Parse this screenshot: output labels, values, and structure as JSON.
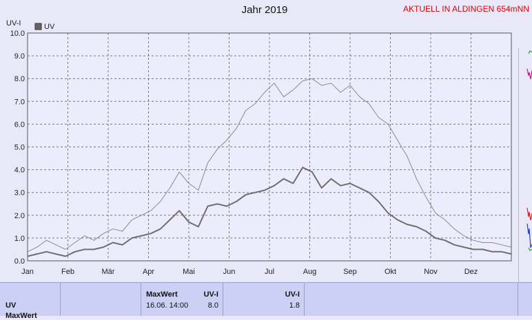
{
  "title": "Jahr 2019",
  "station": "AKTUELL IN ALDINGEN 654mNN",
  "chart_data": {
    "type": "line",
    "ylabel": "UV-I",
    "ylim": [
      0,
      10
    ],
    "yticks": [
      "0.0",
      "1.0",
      "2.0",
      "3.0",
      "4.0",
      "5.0",
      "6.0",
      "7.0",
      "8.0",
      "9.0",
      "10.0"
    ],
    "months": [
      "Jan",
      "Feb",
      "Mär",
      "Apr",
      "Mai",
      "Jun",
      "Jul",
      "Aug",
      "Sep",
      "Okt",
      "Nov",
      "Dez"
    ],
    "legend": [
      "UV"
    ],
    "grid": true,
    "series": [
      {
        "name": "UV",
        "role": "max",
        "values": [
          0.4,
          0.6,
          0.9,
          0.7,
          0.5,
          0.8,
          1.1,
          0.9,
          1.2,
          1.4,
          1.3,
          1.8,
          2.0,
          2.2,
          2.6,
          3.2,
          3.9,
          3.4,
          3.1,
          4.3,
          4.9,
          5.3,
          5.8,
          6.6,
          6.9,
          7.4,
          7.8,
          7.2,
          7.5,
          7.9,
          8.0,
          7.7,
          7.8,
          7.4,
          7.7,
          7.2,
          6.9,
          6.3,
          6.0,
          5.3,
          4.6,
          3.6,
          2.8,
          2.1,
          1.8,
          1.4,
          1.1,
          0.9,
          0.8,
          0.8,
          0.7,
          0.6
        ]
      },
      {
        "name": "UV",
        "role": "mean",
        "values": [
          0.2,
          0.3,
          0.4,
          0.3,
          0.2,
          0.4,
          0.5,
          0.5,
          0.6,
          0.8,
          0.7,
          1.0,
          1.1,
          1.2,
          1.4,
          1.8,
          2.2,
          1.7,
          1.5,
          2.4,
          2.5,
          2.4,
          2.6,
          2.9,
          3.0,
          3.1,
          3.3,
          3.6,
          3.4,
          4.1,
          3.9,
          3.2,
          3.6,
          3.3,
          3.4,
          3.2,
          3.0,
          2.6,
          2.1,
          1.8,
          1.6,
          1.5,
          1.3,
          1.0,
          0.9,
          0.7,
          0.6,
          0.5,
          0.5,
          0.4,
          0.4,
          0.3
        ]
      }
    ]
  },
  "footer": {
    "label": "UV",
    "label2": "MaxWert",
    "maxwert_header": "MaxWert",
    "maxwert_unit": "UV-I",
    "maxwert_date": "16.06.  14:00",
    "maxwert_value": "8.0",
    "mean_unit": "UV-I",
    "mean_value": "1.8"
  }
}
